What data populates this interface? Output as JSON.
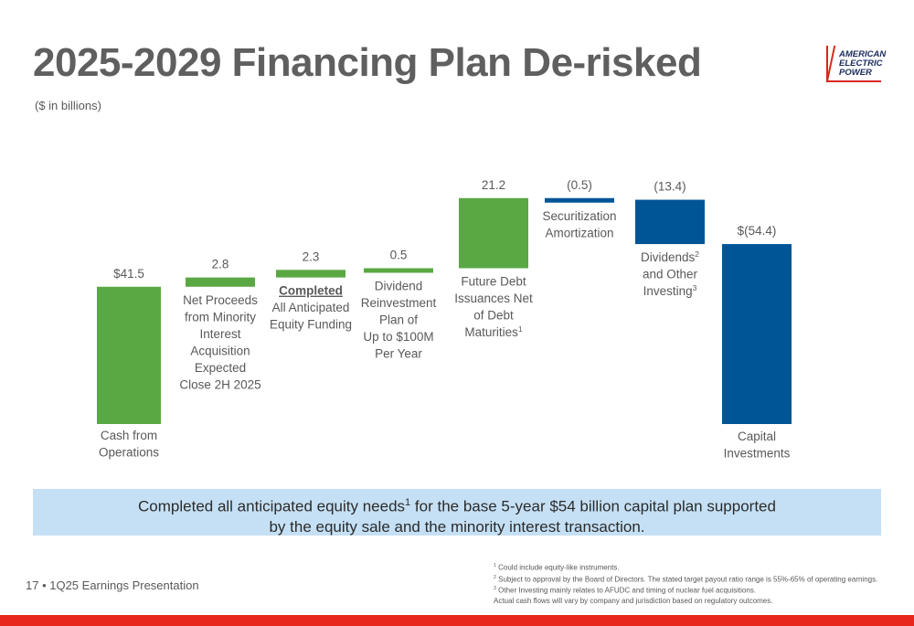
{
  "header": {
    "title": "2025-2029 Financing Plan De-risked",
    "subtitle": "($ in billions)",
    "logo_lines": [
      "AMERICAN",
      "ELECTRIC",
      "POWER"
    ]
  },
  "colors": {
    "green": "#5aa844",
    "blue": "#005596",
    "accent_red": "#e8261c",
    "banner": "#c5e0f5"
  },
  "chart_data": {
    "type": "bar",
    "subtype": "waterfall",
    "categories": [
      "Cash from Operations",
      "Net Proceeds from Minority Interest Acquisition Expected Close 2H 2025",
      "Completed All Anticipated Equity Funding",
      "Dividend Reinvestment Plan of Up to $100M Per Year",
      "Future Debt Issuances Net of Debt Maturities",
      "Securitization Amortization",
      "Dividends and Other Investing",
      "Capital Investments"
    ],
    "values": [
      41.5,
      2.8,
      2.3,
      0.5,
      21.2,
      -0.5,
      -13.4,
      -54.4
    ],
    "value_labels": [
      "$41.5",
      "2.8",
      "2.3",
      "0.5",
      "21.2",
      "(0.5)",
      "(13.4)",
      "$(54.4)"
    ],
    "bar_kinds": [
      "total",
      "delta",
      "delta",
      "delta",
      "delta",
      "delta",
      "delta",
      "total"
    ],
    "bar_colors": [
      "green",
      "green",
      "green",
      "green",
      "green",
      "blue",
      "blue",
      "blue"
    ],
    "ylim": [
      0,
      68.3
    ],
    "grid": false,
    "legend": "none",
    "bar_labels": [
      {
        "lines": [
          "Cash from",
          "Operations"
        ],
        "pos": "below"
      },
      {
        "lines": [
          "Net Proceeds",
          "from Minority",
          "Interest",
          "Acquisition",
          "Expected",
          "Close 2H 2025"
        ],
        "pos": "below"
      },
      {
        "lines": [
          "Completed",
          "All Anticipated",
          "Equity Funding"
        ],
        "bold_first": true,
        "pos": "below"
      },
      {
        "lines": [
          "Dividend",
          "Reinvestment",
          "Plan of",
          "Up to $100M",
          "Per Year"
        ],
        "pos": "below"
      },
      {
        "lines": [
          "Future Debt",
          "Issuances Net",
          "of Debt",
          "Maturities"
        ],
        "sups": {
          "3": "1"
        },
        "pos": "below"
      },
      {
        "lines": [
          "Securitization",
          "Amortization"
        ],
        "pos": "below"
      },
      {
        "lines": [
          "Dividends",
          "and Other",
          "Investing"
        ],
        "sups": {
          "0": "2",
          "2": "3"
        },
        "pos": "below"
      },
      {
        "lines": [
          "Capital",
          "Investments"
        ],
        "pos": "below"
      }
    ]
  },
  "banner": {
    "line1_a": "Completed all anticipated equity needs",
    "line1_sup": "1",
    "line1_b": " for the base 5-year $54 billion capital plan supported",
    "line2": "by the equity sale and the minority interest transaction."
  },
  "footer": {
    "page": "17 • 1Q25 Earnings Presentation",
    "notes": [
      {
        "sup": "1",
        "text": "Could include equity-like instruments."
      },
      {
        "sup": "2",
        "text": "Subject to approval by the Board of Directors. The stated target payout ratio range is 55%-65% of operating earnings."
      },
      {
        "sup": "3",
        "text": "Other Investing mainly relates to AFUDC and timing of nuclear fuel acquisitions."
      },
      {
        "sup": "",
        "text": "Actual cash flows will vary by company and jurisdiction based on regulatory outcomes."
      }
    ]
  }
}
